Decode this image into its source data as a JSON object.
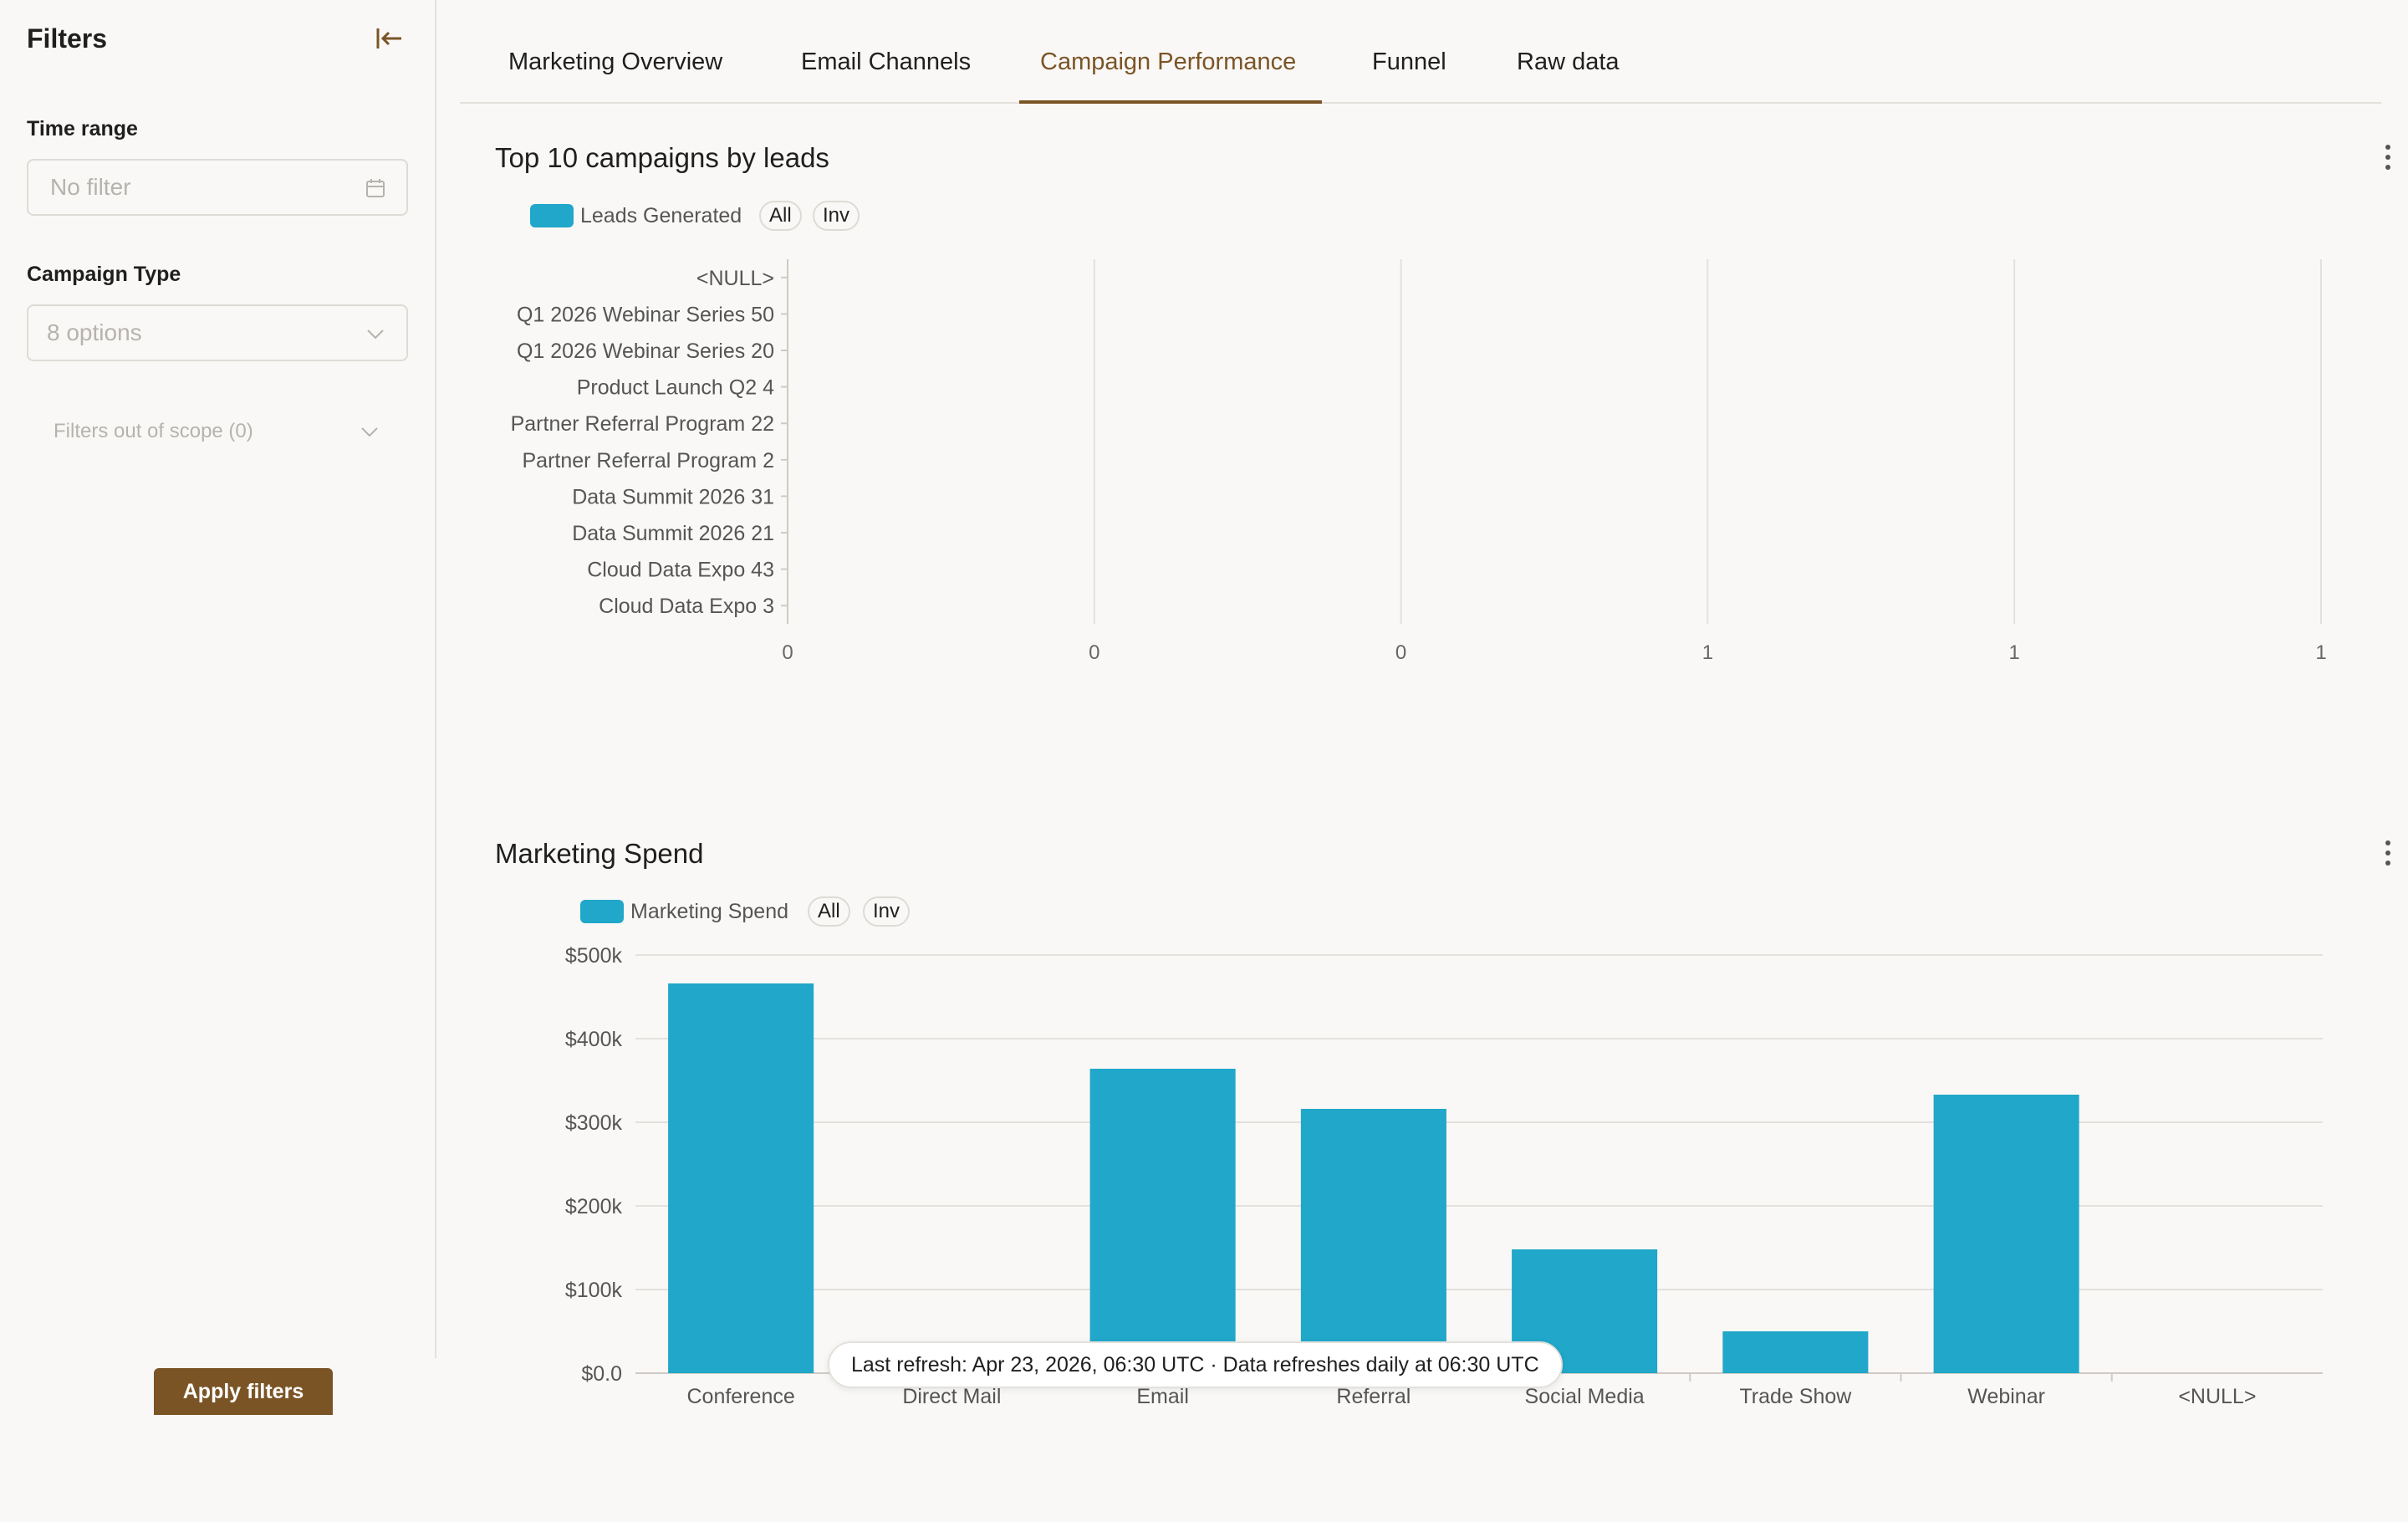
{
  "sidebar": {
    "title": "Filters",
    "time_range": {
      "label": "Time range",
      "placeholder": "No filter"
    },
    "campaign_type": {
      "label": "Campaign Type",
      "placeholder": "8 options"
    },
    "out_of_scope": "Filters out of scope (0)",
    "apply_label": "Apply filters"
  },
  "tabs": [
    {
      "label": "Marketing Overview",
      "active": false
    },
    {
      "label": "Email Channels",
      "active": false
    },
    {
      "label": "Campaign Performance",
      "active": true
    },
    {
      "label": "Funnel",
      "active": false
    },
    {
      "label": "Raw data",
      "active": false
    }
  ],
  "charts": {
    "top_campaigns": {
      "title": "Top 10 campaigns by leads",
      "legend": "Leads Generated",
      "all": "All",
      "inv": "Inv"
    },
    "spend": {
      "title": "Marketing Spend",
      "legend": "Marketing Spend",
      "all": "All",
      "inv": "Inv"
    }
  },
  "colors": {
    "accent": "#7b5426",
    "series": "#20a7c9",
    "grid": "#e4e1dc"
  },
  "tooltip": "Last refresh: Apr 23, 2026, 06:30 UTC · Data refreshes daily at 06:30 UTC",
  "chart_data": [
    {
      "type": "bar",
      "orientation": "horizontal",
      "title": "Top 10 campaigns by leads",
      "categories": [
        "<NULL>",
        "Q1 2026 Webinar Series 50",
        "Q1 2026 Webinar Series 20",
        "Product Launch Q2 4",
        "Partner Referral Program 22",
        "Partner Referral Program 2",
        "Data Summit 2026 31",
        "Data Summit 2026 21",
        "Cloud Data Expo 43",
        "Cloud Data Expo 3"
      ],
      "series": [
        {
          "name": "Leads Generated",
          "values": [
            0,
            0,
            0,
            0,
            0,
            0,
            0,
            0,
            0,
            0
          ]
        }
      ],
      "x_tick_labels": [
        "0",
        "0",
        "0",
        "1",
        "1",
        "1"
      ],
      "xlim": [
        0,
        1
      ],
      "grid": true,
      "legend": "top-left"
    },
    {
      "type": "bar",
      "title": "Marketing Spend",
      "categories": [
        "Conference",
        "Direct Mail",
        "Email",
        "Referral",
        "Social Media",
        "Trade Show",
        "Webinar",
        "<NULL>"
      ],
      "series": [
        {
          "name": "Marketing Spend",
          "values": [
            466000,
            0,
            364000,
            316000,
            148000,
            50000,
            333000,
            0
          ]
        }
      ],
      "y_tick_labels": [
        "$0.0",
        "$100k",
        "$200k",
        "$300k",
        "$400k",
        "$500k"
      ],
      "ylim": [
        0,
        500000
      ],
      "grid": true,
      "legend": "top-left"
    }
  ]
}
